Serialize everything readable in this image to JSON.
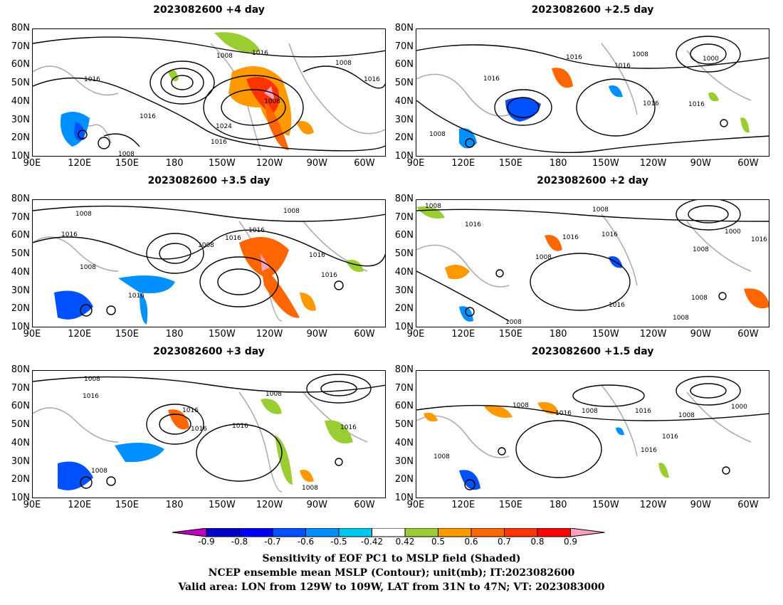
{
  "panels": [
    {
      "title": "2023082600  +4  day"
    },
    {
      "title": "2023082600  +2.5  day"
    },
    {
      "title": "2023082600  +3.5  day"
    },
    {
      "title": "2023082600  +2  day"
    },
    {
      "title": "2023082600  +3  day"
    },
    {
      "title": "2023082600  +1.5  day"
    }
  ],
  "lat_labels": [
    "80N",
    "70N",
    "60N",
    "50N",
    "40N",
    "30N",
    "20N",
    "10N"
  ],
  "lon_labels": [
    "90E",
    "120E",
    "150E",
    "180",
    "150W",
    "120W",
    "90W",
    "60W"
  ],
  "contour_labels": [
    "1000",
    "1008",
    "1016",
    "1024"
  ],
  "colorbar": {
    "labels": [
      "-0.9",
      "-0.8",
      "-0.7",
      "-0.6",
      "-0.5",
      "-0.42",
      "0.42",
      "0.5",
      "0.6",
      "0.7",
      "0.8",
      "0.9"
    ],
    "colors": [
      "#c000c0",
      "#0000c8",
      "#0000ff",
      "#0050ff",
      "#0090ff",
      "#00c8f0",
      "#ffffff",
      "#9acd32",
      "#ff9900",
      "#ff6600",
      "#ff3300",
      "#ff0000",
      "#ffa0c0"
    ]
  },
  "caption": {
    "line1": "Sensitivity of EOF PC1 to MSLP field (Shaded)",
    "line2": "NCEP ensemble mean MSLP (Contour); unit(mb); IT:2023082600",
    "line3": "Valid area: LON from 129W to 109W, LAT from 31N to 47N; VT: 2023083000"
  }
}
